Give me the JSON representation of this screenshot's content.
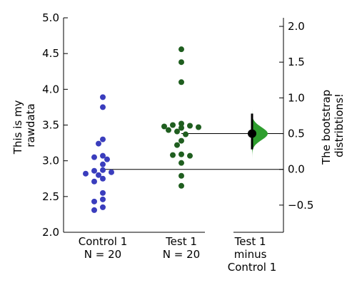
{
  "chart_data": {
    "type": "scatter",
    "title": "",
    "ylabel": "This is my rawdata",
    "ylabel_lines": [
      "This is my",
      "rawdata"
    ],
    "ylim": [
      2.0,
      5.0
    ],
    "yticks": [
      "2.0",
      "2.5",
      "3.0",
      "3.5",
      "4.0",
      "4.5",
      "5.0"
    ],
    "groups": [
      {
        "name": "Control 1",
        "n_label": "N = 20",
        "color": "#3a3dbd",
        "mean": 2.88,
        "values": [
          3.89,
          3.75,
          3.3,
          3.24,
          3.07,
          3.05,
          3.02,
          2.95,
          2.87,
          2.86,
          2.84,
          2.82,
          2.8,
          2.75,
          2.71,
          2.55,
          2.46,
          2.43,
          2.35,
          2.31
        ]
      },
      {
        "name": "Test 1",
        "n_label": "N = 20",
        "color": "#1f5e1f",
        "mean": 3.38,
        "values": [
          4.56,
          4.38,
          4.1,
          3.52,
          3.5,
          3.49,
          3.48,
          3.47,
          3.46,
          3.43,
          3.41,
          3.37,
          3.28,
          3.22,
          3.09,
          3.08,
          3.07,
          2.97,
          2.79,
          2.65
        ]
      }
    ],
    "contrast": {
      "label_lines": [
        "Test 1",
        "minus",
        "Control 1"
      ],
      "ylabel": "The bootstrap distribtions!",
      "ylabel_lines": [
        "The bootstrap",
        "distribtions!"
      ],
      "yticks": [
        "−0.5",
        "0.0",
        "0.5",
        "1.0",
        "1.5",
        "2.0"
      ],
      "ytick_values": [
        -0.5,
        0.0,
        0.5,
        1.0,
        1.5,
        2.0
      ],
      "mean_difference": 0.5,
      "ci": [
        0.28,
        0.78
      ],
      "dist_range": [
        0.04,
        0.92
      ],
      "color": "#2e9e2e"
    }
  }
}
